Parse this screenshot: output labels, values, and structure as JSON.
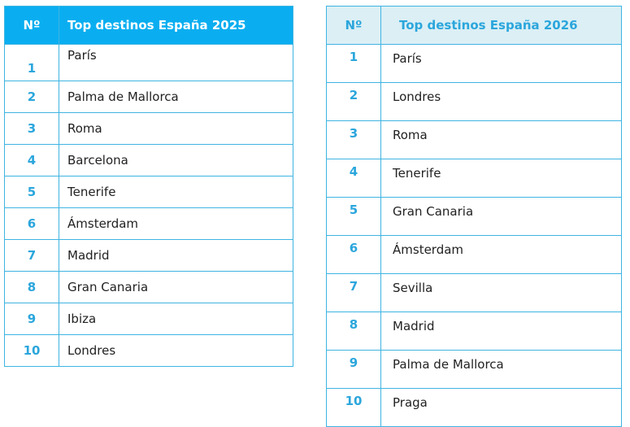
{
  "table_2025": {
    "header_num": "Nº",
    "header_title": "Top destinos España 2025",
    "rows": [
      {
        "rank": "1",
        "name": "París"
      },
      {
        "rank": "2",
        "name": "Palma de Mallorca"
      },
      {
        "rank": "3",
        "name": "Roma"
      },
      {
        "rank": "4",
        "name": "Barcelona"
      },
      {
        "rank": "5",
        "name": "Tenerife"
      },
      {
        "rank": "6",
        "name": "Ámsterdam"
      },
      {
        "rank": "7",
        "name": "Madrid"
      },
      {
        "rank": "8",
        "name": "Gran Canaria"
      },
      {
        "rank": "9",
        "name": "Ibiza"
      },
      {
        "rank": "10",
        "name": "Londres"
      }
    ]
  },
  "table_2026": {
    "header_num": "Nº",
    "header_title": "Top destinos España 2026",
    "rows": [
      {
        "rank": "1",
        "name": "París"
      },
      {
        "rank": "2",
        "name": "Londres"
      },
      {
        "rank": "3",
        "name": "Roma"
      },
      {
        "rank": "4",
        "name": "Tenerife"
      },
      {
        "rank": "5",
        "name": "Gran Canaria"
      },
      {
        "rank": "6",
        "name": "Ámsterdam"
      },
      {
        "rank": "7",
        "name": "Sevilla"
      },
      {
        "rank": "8",
        "name": "Madrid"
      },
      {
        "rank": "9",
        "name": "Palma de Mallorca"
      },
      {
        "rank": "10",
        "name": "Praga"
      }
    ]
  },
  "colors": {
    "accent": "#0aaef0",
    "header_light": "#dbeff5",
    "number_text": "#2ba6dc"
  }
}
